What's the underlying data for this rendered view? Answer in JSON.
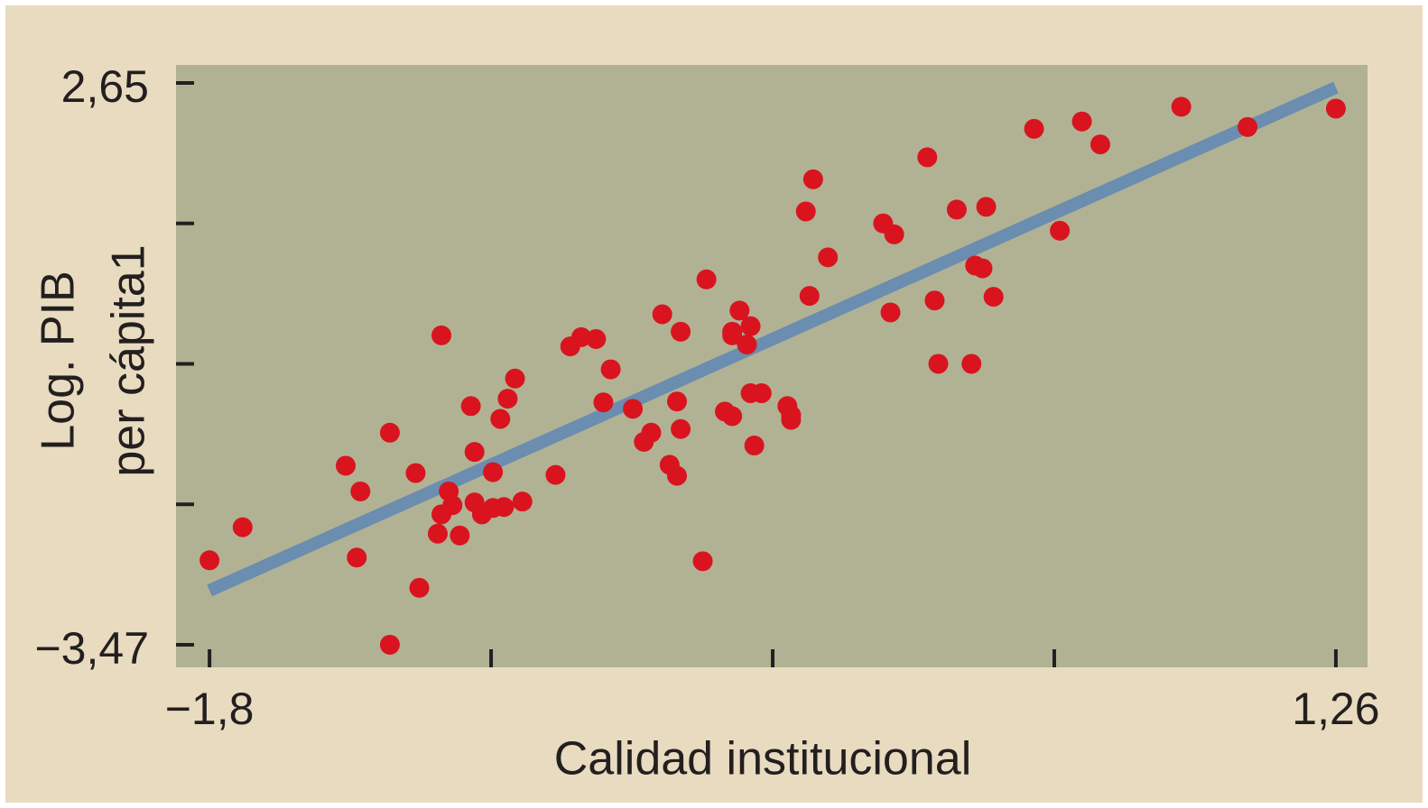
{
  "chart_data": {
    "type": "scatter",
    "xlabel": "Calidad institucional",
    "ylabel": [
      "Log. PIB",
      "per cápita1"
    ],
    "xlim": [
      -1.891,
      1.346
    ],
    "ylim": [
      -3.716,
      2.846
    ],
    "xticks": [
      {
        "value": -1.8,
        "label": "−1,8"
      },
      {
        "value": 1.26,
        "label": "1,26"
      }
    ],
    "xminorticks": [
      -1.035,
      -0.27,
      0.495
    ],
    "yticks": [
      {
        "value": 2.65,
        "label": "2,65"
      },
      {
        "value": -3.47,
        "label": "−3,47"
      }
    ],
    "yminorticks": [
      1.12,
      -0.41,
      -1.94
    ],
    "series": [
      {
        "color": "#d9141f",
        "x": [
          -1.8,
          -1.71,
          -1.43,
          -1.39,
          -1.4,
          -1.31,
          -1.31,
          -1.24,
          -1.23,
          -1.17,
          -1.18,
          -1.17,
          -1.15,
          -1.14,
          -1.12,
          -1.09,
          -1.08,
          -1.08,
          -1.06,
          -1.03,
          -1.03,
          -1.01,
          -0.99,
          -0.97,
          -1.0,
          -0.95,
          -0.86,
          -0.82,
          -0.79,
          -0.75,
          -0.71,
          -0.73,
          -0.65,
          -0.62,
          -0.6,
          -0.57,
          -0.55,
          -0.53,
          -0.53,
          -0.52,
          -0.52,
          -0.45,
          -0.46,
          -0.4,
          -0.38,
          -0.38,
          -0.36,
          -0.38,
          -0.33,
          -0.34,
          -0.33,
          -0.3,
          -0.32,
          -0.23,
          -0.22,
          -0.22,
          -0.18,
          -0.16,
          -0.17,
          -0.12,
          0.03,
          0.06,
          0.05,
          0.15,
          0.17,
          0.18,
          0.23,
          0.27,
          0.28,
          0.3,
          0.31,
          0.33,
          0.44,
          0.51,
          0.57,
          0.62,
          0.84,
          1.02,
          1.26
        ],
        "values": [
          -2.55,
          -2.19,
          -1.52,
          -1.8,
          -2.52,
          -1.16,
          -3.47,
          -1.6,
          -2.85,
          -0.1,
          -2.26,
          -2.05,
          -1.8,
          -1.95,
          -2.28,
          -0.87,
          -1.37,
          -1.92,
          -2.05,
          -1.59,
          -1.98,
          -1.01,
          -0.79,
          -0.57,
          -1.97,
          -1.91,
          -1.62,
          -0.22,
          -0.12,
          -0.14,
          -0.47,
          -0.83,
          -0.9,
          -1.26,
          -1.16,
          0.13,
          -1.51,
          -1.63,
          -0.82,
          -0.06,
          -1.12,
          0.51,
          -2.56,
          -0.93,
          -0.98,
          -0.1,
          0.17,
          -0.06,
          0.0,
          -0.2,
          -0.73,
          -0.73,
          -1.3,
          -0.87,
          -1.02,
          -0.97,
          1.25,
          1.6,
          0.33,
          0.75,
          1.12,
          1.0,
          0.15,
          1.84,
          0.28,
          -0.41,
          1.27,
          -0.41,
          0.66,
          0.63,
          1.3,
          0.32,
          2.15,
          1.04,
          2.23,
          1.98,
          2.39,
          2.17,
          2.37
        ]
      }
    ],
    "trend": {
      "color": "#6a8db0",
      "x": [
        -1.8,
        1.26
      ],
      "values": [
        -2.88,
        2.6
      ]
    }
  }
}
